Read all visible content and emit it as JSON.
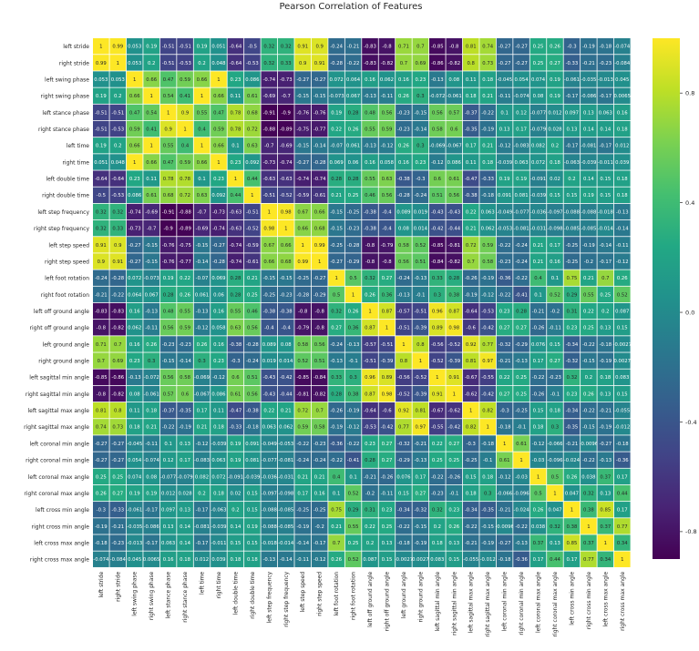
{
  "chart_data": {
    "type": "heatmap",
    "title": "Pearson Correlation of Features",
    "colormap": "viridis",
    "vmin": -0.9,
    "vmax": 1.0,
    "colorbar_ticks": [
      0.8,
      0.4,
      0.0,
      -0.4,
      -0.8
    ],
    "colorbar_tick_labels": [
      "0.8",
      "0.4",
      "0.0",
      "-0.4",
      "-0.8"
    ],
    "labels": [
      "left stride",
      "right stride",
      "left swing phase",
      "right swing phase",
      "left stance phase",
      "right stance phase",
      "left time",
      "right time",
      "left double time",
      "right double time",
      "left step frequency",
      "right step frequency",
      "left step speed",
      "right step speed",
      "left foot rotation",
      "right foot rotation",
      "left off ground angle",
      "right off ground angle",
      "left ground angle",
      "right ground angle",
      "left sagittal min angle",
      "right sagittal min angle",
      "left sagittal max angle",
      "right sagittal max angle",
      "left coronal min angle",
      "right coronal min angle",
      "left coronal max angle",
      "right coronal max angle",
      "left cross min angle",
      "right cross min angle",
      "left cross max angle",
      "right cross max angle"
    ],
    "matrix": [
      [
        "1",
        "0.99",
        "0.053",
        "0.19",
        "-0.51",
        "-0.51",
        "0.19",
        "0.051",
        "-0.64",
        "-0.5",
        "0.32",
        "0.32",
        "0.91",
        "0.9",
        "-0.24",
        "-0.21",
        "-0.83",
        "-0.8",
        "0.71",
        "0.7",
        "-0.85",
        "-0.8",
        "0.81",
        "0.74",
        "-0.27",
        "-0.27",
        "0.25",
        "0.26",
        "-0.3",
        "-0.19",
        "-0.18",
        "-0.074"
      ],
      [
        "0.99",
        "1",
        "0.053",
        "0.2",
        "-0.51",
        "-0.53",
        "0.2",
        "0.048",
        "-0.64",
        "-0.53",
        "0.32",
        "0.33",
        "0.9",
        "0.91",
        "-0.28",
        "-0.22",
        "-0.83",
        "-0.82",
        "0.7",
        "0.69",
        "-0.86",
        "-0.82",
        "0.8",
        "0.73",
        "-0.27",
        "-0.27",
        "0.25",
        "0.27",
        "-0.33",
        "-0.21",
        "-0.23",
        "-0.084"
      ],
      [
        "0.053",
        "0.053",
        "1",
        "0.66",
        "0.47",
        "0.59",
        "0.66",
        "1",
        "0.23",
        "0.086",
        "-0.74",
        "-0.73",
        "-0.27",
        "-0.27",
        "0.072",
        "0.064",
        "0.16",
        "0.062",
        "0.16",
        "0.23",
        "-0.13",
        "0.08",
        "0.11",
        "0.18",
        "-0.045",
        "0.054",
        "0.074",
        "0.19",
        "-0.061",
        "-0.035",
        "-0.013",
        "0.045"
      ],
      [
        "0.19",
        "0.2",
        "0.66",
        "1",
        "0.54",
        "0.41",
        "1",
        "0.66",
        "0.11",
        "0.61",
        "-0.69",
        "-0.7",
        "-0.15",
        "-0.15",
        "-0.073",
        "0.067",
        "-0.13",
        "-0.11",
        "0.26",
        "0.3",
        "-0.072",
        "-0.061",
        "0.18",
        "0.21",
        "-0.11",
        "-0.074",
        "0.08",
        "0.19",
        "-0.17",
        "-0.086",
        "-0.17",
        "0.0065"
      ],
      [
        "-0.51",
        "-0.51",
        "0.47",
        "0.54",
        "1",
        "0.9",
        "0.55",
        "0.47",
        "0.78",
        "0.68",
        "-0.91",
        "-0.9",
        "-0.76",
        "-0.76",
        "0.19",
        "0.28",
        "0.48",
        "0.56",
        "-0.23",
        "-0.15",
        "0.56",
        "0.57",
        "-0.37",
        "-0.22",
        "0.1",
        "0.12",
        "-0.077",
        "0.012",
        "0.097",
        "0.13",
        "0.063",
        "0.16"
      ],
      [
        "-0.51",
        "-0.53",
        "0.59",
        "0.41",
        "0.9",
        "1",
        "0.4",
        "0.59",
        "0.78",
        "0.72",
        "-0.88",
        "-0.89",
        "-0.75",
        "-0.77",
        "0.22",
        "0.26",
        "0.55",
        "0.59",
        "-0.23",
        "-0.14",
        "0.58",
        "0.6",
        "-0.35",
        "-0.19",
        "0.13",
        "0.17",
        "-0.079",
        "0.028",
        "0.13",
        "0.14",
        "0.14",
        "0.18"
      ],
      [
        "0.19",
        "0.2",
        "0.66",
        "1",
        "0.55",
        "0.4",
        "1",
        "0.66",
        "0.1",
        "0.63",
        "-0.7",
        "-0.69",
        "-0.15",
        "-0.14",
        "-0.07",
        "0.061",
        "-0.13",
        "-0.12",
        "0.26",
        "0.3",
        "-0.069",
        "-0.067",
        "0.17",
        "0.21",
        "-0.12",
        "-0.083",
        "0.082",
        "0.2",
        "-0.17",
        "-0.081",
        "-0.17",
        "0.012"
      ],
      [
        "0.051",
        "0.048",
        "1",
        "0.66",
        "0.47",
        "0.59",
        "0.66",
        "1",
        "0.23",
        "0.092",
        "-0.73",
        "-0.74",
        "-0.27",
        "-0.28",
        "0.069",
        "0.06",
        "0.16",
        "0.058",
        "0.16",
        "0.23",
        "-0.12",
        "0.086",
        "0.11",
        "0.18",
        "-0.039",
        "0.063",
        "0.072",
        "0.18",
        "-0.063",
        "-0.039",
        "-0.011",
        "0.039"
      ],
      [
        "-0.64",
        "-0.64",
        "0.23",
        "0.11",
        "0.78",
        "0.78",
        "0.1",
        "0.23",
        "1",
        "0.44",
        "-0.63",
        "-0.63",
        "-0.74",
        "-0.74",
        "0.28",
        "0.28",
        "0.55",
        "0.63",
        "-0.38",
        "-0.3",
        "0.6",
        "0.61",
        "-0.47",
        "-0.33",
        "0.19",
        "0.19",
        "-0.091",
        "0.02",
        "0.2",
        "0.14",
        "0.15",
        "0.18"
      ],
      [
        "-0.5",
        "-0.53",
        "0.086",
        "0.61",
        "0.68",
        "0.72",
        "0.63",
        "0.092",
        "0.44",
        "1",
        "-0.51",
        "-0.52",
        "-0.59",
        "-0.61",
        "0.21",
        "0.25",
        "0.46",
        "0.56",
        "-0.28",
        "-0.24",
        "0.51",
        "0.56",
        "-0.38",
        "-0.18",
        "0.091",
        "0.081",
        "-0.039",
        "0.15",
        "0.15",
        "0.19",
        "0.15",
        "0.18"
      ],
      [
        "0.32",
        "0.32",
        "-0.74",
        "-0.69",
        "-0.91",
        "-0.88",
        "-0.7",
        "-0.73",
        "-0.63",
        "-0.51",
        "1",
        "0.98",
        "0.67",
        "0.66",
        "-0.15",
        "-0.25",
        "-0.38",
        "-0.4",
        "0.089",
        "0.019",
        "-0.43",
        "-0.43",
        "0.22",
        "0.063",
        "-0.049",
        "-0.077",
        "-0.036",
        "-0.097",
        "-0.088",
        "-0.088",
        "-0.018",
        "-0.13"
      ],
      [
        "0.32",
        "0.33",
        "-0.73",
        "-0.7",
        "-0.9",
        "-0.89",
        "-0.69",
        "-0.74",
        "-0.63",
        "-0.52",
        "0.98",
        "1",
        "0.66",
        "0.68",
        "-0.15",
        "-0.23",
        "-0.38",
        "-0.4",
        "0.08",
        "0.014",
        "-0.42",
        "-0.44",
        "0.21",
        "0.062",
        "-0.053",
        "-0.081",
        "-0.031",
        "-0.098",
        "-0.085",
        "-0.085",
        "-0.014",
        "-0.14"
      ],
      [
        "0.91",
        "0.9",
        "-0.27",
        "-0.15",
        "-0.76",
        "-0.75",
        "-0.15",
        "-0.27",
        "-0.74",
        "-0.59",
        "0.67",
        "0.66",
        "1",
        "0.99",
        "-0.25",
        "-0.28",
        "-0.8",
        "-0.79",
        "0.58",
        "0.52",
        "-0.85",
        "-0.81",
        "0.72",
        "0.59",
        "-0.22",
        "-0.24",
        "0.21",
        "0.17",
        "-0.25",
        "-0.19",
        "-0.14",
        "-0.11"
      ],
      [
        "0.9",
        "0.91",
        "-0.27",
        "-0.15",
        "-0.76",
        "-0.77",
        "-0.14",
        "-0.28",
        "-0.74",
        "-0.61",
        "0.66",
        "0.68",
        "0.99",
        "1",
        "-0.27",
        "-0.29",
        "-0.8",
        "-0.8",
        "0.56",
        "0.51",
        "-0.84",
        "-0.82",
        "0.7",
        "0.58",
        "-0.23",
        "-0.24",
        "0.21",
        "0.16",
        "-0.25",
        "-0.2",
        "-0.17",
        "-0.12"
      ],
      [
        "-0.24",
        "-0.28",
        "0.072",
        "-0.073",
        "0.19",
        "0.22",
        "-0.07",
        "0.069",
        "0.28",
        "0.21",
        "-0.15",
        "-0.15",
        "-0.25",
        "-0.27",
        "1",
        "0.5",
        "0.32",
        "0.27",
        "-0.24",
        "-0.13",
        "0.33",
        "0.28",
        "-0.26",
        "-0.19",
        "-0.36",
        "-0.22",
        "0.4",
        "0.1",
        "0.75",
        "0.21",
        "0.7",
        "0.26"
      ],
      [
        "-0.21",
        "-0.22",
        "0.064",
        "0.067",
        "0.28",
        "0.26",
        "0.061",
        "0.06",
        "0.28",
        "0.25",
        "-0.25",
        "-0.23",
        "-0.28",
        "-0.29",
        "0.5",
        "1",
        "0.26",
        "0.36",
        "-0.13",
        "-0.1",
        "0.3",
        "0.38",
        "-0.19",
        "-0.12",
        "-0.22",
        "-0.41",
        "0.1",
        "0.52",
        "0.29",
        "0.55",
        "0.25",
        "0.52"
      ],
      [
        "-0.83",
        "-0.83",
        "0.16",
        "-0.13",
        "0.48",
        "0.55",
        "-0.13",
        "0.16",
        "0.55",
        "0.46",
        "-0.38",
        "-0.38",
        "-0.8",
        "-0.8",
        "0.32",
        "0.26",
        "1",
        "0.87",
        "-0.57",
        "-0.51",
        "0.96",
        "0.87",
        "-0.64",
        "-0.53",
        "0.23",
        "0.28",
        "-0.21",
        "-0.2",
        "0.31",
        "0.22",
        "0.2",
        "0.087"
      ],
      [
        "-0.8",
        "-0.82",
        "0.062",
        "-0.11",
        "0.56",
        "0.59",
        "-0.12",
        "0.058",
        "0.63",
        "0.56",
        "-0.4",
        "-0.4",
        "-0.79",
        "-0.8",
        "0.27",
        "0.36",
        "0.87",
        "1",
        "-0.51",
        "-0.39",
        "0.89",
        "0.98",
        "-0.6",
        "-0.42",
        "0.27",
        "0.27",
        "-0.26",
        "-0.11",
        "0.23",
        "0.25",
        "0.13",
        "0.15"
      ],
      [
        "0.71",
        "0.7",
        "0.16",
        "0.26",
        "-0.23",
        "-0.23",
        "0.26",
        "0.16",
        "-0.38",
        "-0.28",
        "0.089",
        "0.08",
        "0.58",
        "0.56",
        "-0.24",
        "-0.13",
        "-0.57",
        "-0.51",
        "1",
        "0.8",
        "-0.56",
        "-0.52",
        "0.92",
        "0.77",
        "-0.32",
        "-0.29",
        "0.076",
        "0.15",
        "-0.34",
        "-0.22",
        "-0.18",
        "-0.0027"
      ],
      [
        "0.7",
        "0.69",
        "0.23",
        "0.3",
        "-0.15",
        "-0.14",
        "0.3",
        "0.23",
        "-0.3",
        "-0.24",
        "0.019",
        "0.014",
        "0.52",
        "0.51",
        "-0.13",
        "-0.1",
        "-0.51",
        "-0.39",
        "0.8",
        "1",
        "-0.52",
        "-0.39",
        "0.81",
        "0.97",
        "-0.21",
        "-0.13",
        "0.17",
        "0.27",
        "-0.32",
        "-0.15",
        "-0.19",
        "0.0027"
      ],
      [
        "-0.85",
        "-0.86",
        "-0.13",
        "-0.072",
        "0.56",
        "0.58",
        "-0.069",
        "-0.12",
        "0.6",
        "0.51",
        "-0.43",
        "-0.42",
        "-0.85",
        "-0.84",
        "0.33",
        "0.3",
        "0.96",
        "0.89",
        "-0.56",
        "-0.52",
        "1",
        "0.91",
        "-0.67",
        "-0.55",
        "0.22",
        "0.25",
        "-0.22",
        "-0.23",
        "0.32",
        "0.2",
        "0.18",
        "0.083"
      ],
      [
        "-0.8",
        "-0.82",
        "0.08",
        "-0.061",
        "0.57",
        "0.6",
        "-0.067",
        "0.086",
        "0.61",
        "0.56",
        "-0.43",
        "-0.44",
        "-0.81",
        "-0.82",
        "0.28",
        "0.38",
        "0.87",
        "0.98",
        "-0.52",
        "-0.39",
        "0.91",
        "1",
        "-0.62",
        "-0.42",
        "0.27",
        "0.25",
        "-0.26",
        "-0.1",
        "0.23",
        "0.26",
        "0.13",
        "0.15"
      ],
      [
        "0.81",
        "0.8",
        "0.11",
        "0.18",
        "-0.37",
        "-0.35",
        "0.17",
        "0.11",
        "-0.47",
        "-0.38",
        "0.22",
        "0.21",
        "0.72",
        "0.7",
        "-0.26",
        "-0.19",
        "-0.64",
        "-0.6",
        "0.92",
        "0.81",
        "-0.67",
        "-0.62",
        "1",
        "0.82",
        "-0.3",
        "-0.25",
        "0.15",
        "0.18",
        "-0.34",
        "-0.22",
        "-0.21",
        "-0.055"
      ],
      [
        "0.74",
        "0.73",
        "0.18",
        "0.21",
        "-0.22",
        "-0.19",
        "0.21",
        "0.18",
        "-0.33",
        "-0.18",
        "0.063",
        "0.062",
        "0.59",
        "0.58",
        "-0.19",
        "-0.12",
        "-0.53",
        "-0.42",
        "0.77",
        "0.97",
        "-0.55",
        "-0.42",
        "0.82",
        "1",
        "-0.18",
        "-0.1",
        "0.18",
        "0.3",
        "-0.35",
        "-0.15",
        "-0.19",
        "-0.012"
      ],
      [
        "-0.27",
        "-0.27",
        "-0.045",
        "-0.11",
        "0.1",
        "0.13",
        "-0.12",
        "-0.039",
        "0.19",
        "0.091",
        "-0.049",
        "-0.053",
        "-0.22",
        "-0.23",
        "-0.36",
        "-0.22",
        "0.23",
        "0.27",
        "-0.32",
        "-0.21",
        "0.22",
        "0.27",
        "-0.3",
        "-0.18",
        "1",
        "0.61",
        "-0.12",
        "-0.066",
        "-0.21",
        "-0.0096",
        "-0.27",
        "-0.18"
      ],
      [
        "-0.27",
        "-0.27",
        "0.054",
        "-0.074",
        "0.12",
        "0.17",
        "-0.083",
        "0.063",
        "0.19",
        "0.081",
        "-0.077",
        "-0.081",
        "-0.24",
        "-0.24",
        "-0.22",
        "-0.41",
        "0.28",
        "0.27",
        "-0.29",
        "-0.13",
        "0.25",
        "0.25",
        "-0.25",
        "-0.1",
        "0.61",
        "1",
        "-0.03",
        "-0.096",
        "-0.024",
        "-0.22",
        "-0.13",
        "-0.36"
      ],
      [
        "0.25",
        "0.25",
        "0.074",
        "0.08",
        "-0.077",
        "-0.079",
        "0.082",
        "0.072",
        "-0.091",
        "-0.039",
        "-0.036",
        "-0.031",
        "0.21",
        "0.21",
        "0.4",
        "0.1",
        "-0.21",
        "-0.26",
        "0.076",
        "0.17",
        "-0.22",
        "-0.26",
        "0.15",
        "0.18",
        "-0.12",
        "-0.03",
        "1",
        "0.5",
        "0.26",
        "0.038",
        "0.37",
        "0.17"
      ],
      [
        "0.26",
        "0.27",
        "0.19",
        "0.19",
        "0.012",
        "0.028",
        "0.2",
        "0.18",
        "0.02",
        "0.15",
        "-0.097",
        "-0.098",
        "0.17",
        "0.16",
        "0.1",
        "0.52",
        "-0.2",
        "-0.11",
        "0.15",
        "0.27",
        "-0.23",
        "-0.1",
        "0.18",
        "0.3",
        "-0.066",
        "-0.096",
        "0.5",
        "1",
        "0.047",
        "0.32",
        "0.13",
        "0.44"
      ],
      [
        "-0.3",
        "-0.33",
        "-0.061",
        "-0.17",
        "0.097",
        "0.13",
        "-0.17",
        "-0.063",
        "0.2",
        "0.15",
        "-0.088",
        "-0.085",
        "-0.25",
        "-0.25",
        "0.75",
        "0.29",
        "0.31",
        "0.23",
        "-0.34",
        "-0.32",
        "0.32",
        "0.23",
        "-0.34",
        "-0.35",
        "-0.21",
        "-0.024",
        "0.26",
        "0.047",
        "1",
        "0.38",
        "0.85",
        "0.17"
      ],
      [
        "-0.19",
        "-0.21",
        "-0.035",
        "-0.086",
        "0.13",
        "0.14",
        "-0.081",
        "-0.039",
        "0.14",
        "0.19",
        "-0.088",
        "-0.085",
        "-0.19",
        "-0.2",
        "0.21",
        "0.55",
        "0.22",
        "0.25",
        "-0.22",
        "-0.15",
        "0.2",
        "0.26",
        "-0.22",
        "-0.15",
        "-0.0096",
        "-0.22",
        "0.038",
        "0.32",
        "0.38",
        "1",
        "0.37",
        "0.77"
      ],
      [
        "-0.18",
        "-0.23",
        "-0.013",
        "-0.17",
        "0.063",
        "0.14",
        "-0.17",
        "-0.011",
        "0.15",
        "0.15",
        "-0.018",
        "-0.014",
        "-0.14",
        "-0.17",
        "0.7",
        "0.25",
        "0.2",
        "0.13",
        "-0.18",
        "-0.19",
        "0.18",
        "0.13",
        "-0.21",
        "-0.19",
        "-0.27",
        "-0.13",
        "0.37",
        "0.13",
        "0.85",
        "0.37",
        "1",
        "0.34"
      ],
      [
        "-0.074",
        "-0.084",
        "0.045",
        "0.0065",
        "0.16",
        "0.18",
        "0.012",
        "0.039",
        "0.18",
        "0.18",
        "-0.13",
        "-0.14",
        "-0.11",
        "-0.12",
        "0.26",
        "0.52",
        "0.087",
        "0.15",
        "-0.0027",
        "0.0027",
        "0.083",
        "0.15",
        "-0.055",
        "-0.012",
        "-0.18",
        "-0.36",
        "0.17",
        "0.44",
        "0.17",
        "0.77",
        "0.34",
        "1"
      ]
    ]
  }
}
